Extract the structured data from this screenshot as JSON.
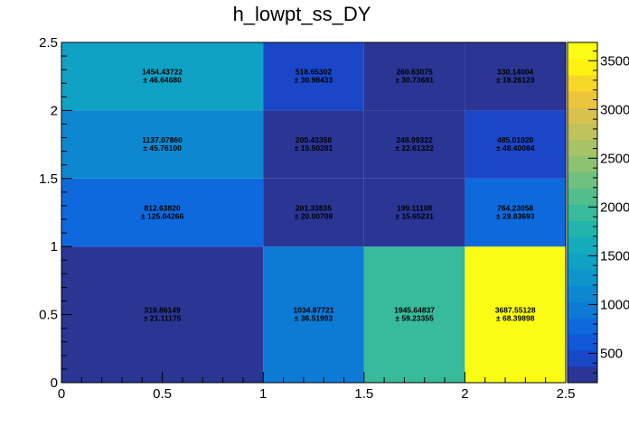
{
  "chart_data": {
    "type": "heatmap",
    "title": "h_lowpt_ss_DY",
    "xlabel": "",
    "ylabel": "",
    "x_edges": [
      0,
      1,
      1.5,
      2,
      2.5
    ],
    "y_edges": [
      0,
      1,
      1.5,
      2,
      2.5
    ],
    "xlim": [
      0,
      2.5
    ],
    "ylim": [
      0,
      2.5
    ],
    "x_ticks": [
      "0",
      "0.5",
      "1",
      "1.5",
      "2",
      "2.5"
    ],
    "y_ticks": [
      "0",
      "0.5",
      "1",
      "1.5",
      "2",
      "2.5"
    ],
    "x_tick_values": [
      0,
      0.5,
      1,
      1.5,
      2,
      2.5
    ],
    "y_tick_values": [
      0,
      0.5,
      1,
      1.5,
      2,
      2.5
    ],
    "cells": [
      {
        "x": [
          0,
          1
        ],
        "y": [
          0,
          1
        ],
        "value": "319.86149",
        "error": "± 21.11175",
        "v": 319.86149
      },
      {
        "x": [
          1,
          1.5
        ],
        "y": [
          0,
          1
        ],
        "value": "1034.87721",
        "error": "± 36.51993",
        "v": 1034.87721
      },
      {
        "x": [
          1.5,
          2
        ],
        "y": [
          0,
          1
        ],
        "value": "1945.64837",
        "error": "± 59.23355",
        "v": 1945.64837
      },
      {
        "x": [
          2,
          2.5
        ],
        "y": [
          0,
          1
        ],
        "value": "3687.55128",
        "error": "± 68.39898",
        "v": 3687.55128
      },
      {
        "x": [
          0,
          1
        ],
        "y": [
          1,
          1.5
        ],
        "value": "812.63820",
        "error": "± 125.04266",
        "v": 812.6382
      },
      {
        "x": [
          1,
          1.5
        ],
        "y": [
          1,
          1.5
        ],
        "value": "201.33835",
        "error": "± 20.00708",
        "v": 201.33835
      },
      {
        "x": [
          1.5,
          2
        ],
        "y": [
          1,
          1.5
        ],
        "value": "199.11108",
        "error": "± 15.65231",
        "v": 199.11108
      },
      {
        "x": [
          2,
          2.5
        ],
        "y": [
          1,
          1.5
        ],
        "value": "764.23058",
        "error": "± 29.83693",
        "v": 764.23058
      },
      {
        "x": [
          0,
          1
        ],
        "y": [
          1.5,
          2
        ],
        "value": "1137.07860",
        "error": "± 45.76100",
        "v": 1137.0786
      },
      {
        "x": [
          1,
          1.5
        ],
        "y": [
          1.5,
          2
        ],
        "value": "200.43358",
        "error": "± 15.50281",
        "v": 200.43358
      },
      {
        "x": [
          1.5,
          2
        ],
        "y": [
          1.5,
          2
        ],
        "value": "248.99322",
        "error": "± 22.61322",
        "v": 248.99322
      },
      {
        "x": [
          2,
          2.5
        ],
        "y": [
          1.5,
          2
        ],
        "value": "485.01020",
        "error": "± 48.40084",
        "v": 485.0102
      },
      {
        "x": [
          0,
          1
        ],
        "y": [
          2,
          2.5
        ],
        "value": "1454.43722",
        "error": "± 46.64680",
        "v": 1454.43722
      },
      {
        "x": [
          1,
          1.5
        ],
        "y": [
          2,
          2.5
        ],
        "value": "518.65302",
        "error": "± 30.98433",
        "v": 518.65302
      },
      {
        "x": [
          1.5,
          2
        ],
        "y": [
          2,
          2.5
        ],
        "value": "260.63075",
        "error": "± 30.73681",
        "v": 260.63075
      },
      {
        "x": [
          2,
          2.5
        ],
        "y": [
          2,
          2.5
        ],
        "value": "330.14004",
        "error": "± 18.26123",
        "v": 330.14004
      }
    ],
    "colorbar": {
      "range": [
        199.11108,
        3687.55128
      ],
      "ticks": [
        "500",
        "1000",
        "1500",
        "2000",
        "2500",
        "3000",
        "3500"
      ],
      "tick_values": [
        500,
        1000,
        1500,
        2000,
        2500,
        3000,
        3500
      ],
      "bands": 20,
      "palette": [
        "#2a3594",
        "#1a47c8",
        "#1158da",
        "#0e6adc",
        "#0d7ad6",
        "#0d88d0",
        "#0e96cb",
        "#10a2c4",
        "#13acba",
        "#22b4ac",
        "#38ba9c",
        "#52be8c",
        "#6ec17e",
        "#8ac272",
        "#a6c368",
        "#c0c25e",
        "#d8c14e",
        "#ebc53b",
        "#f7d826",
        "#fff20f",
        "#fafc14"
      ]
    },
    "grid": false,
    "legend": "none"
  }
}
